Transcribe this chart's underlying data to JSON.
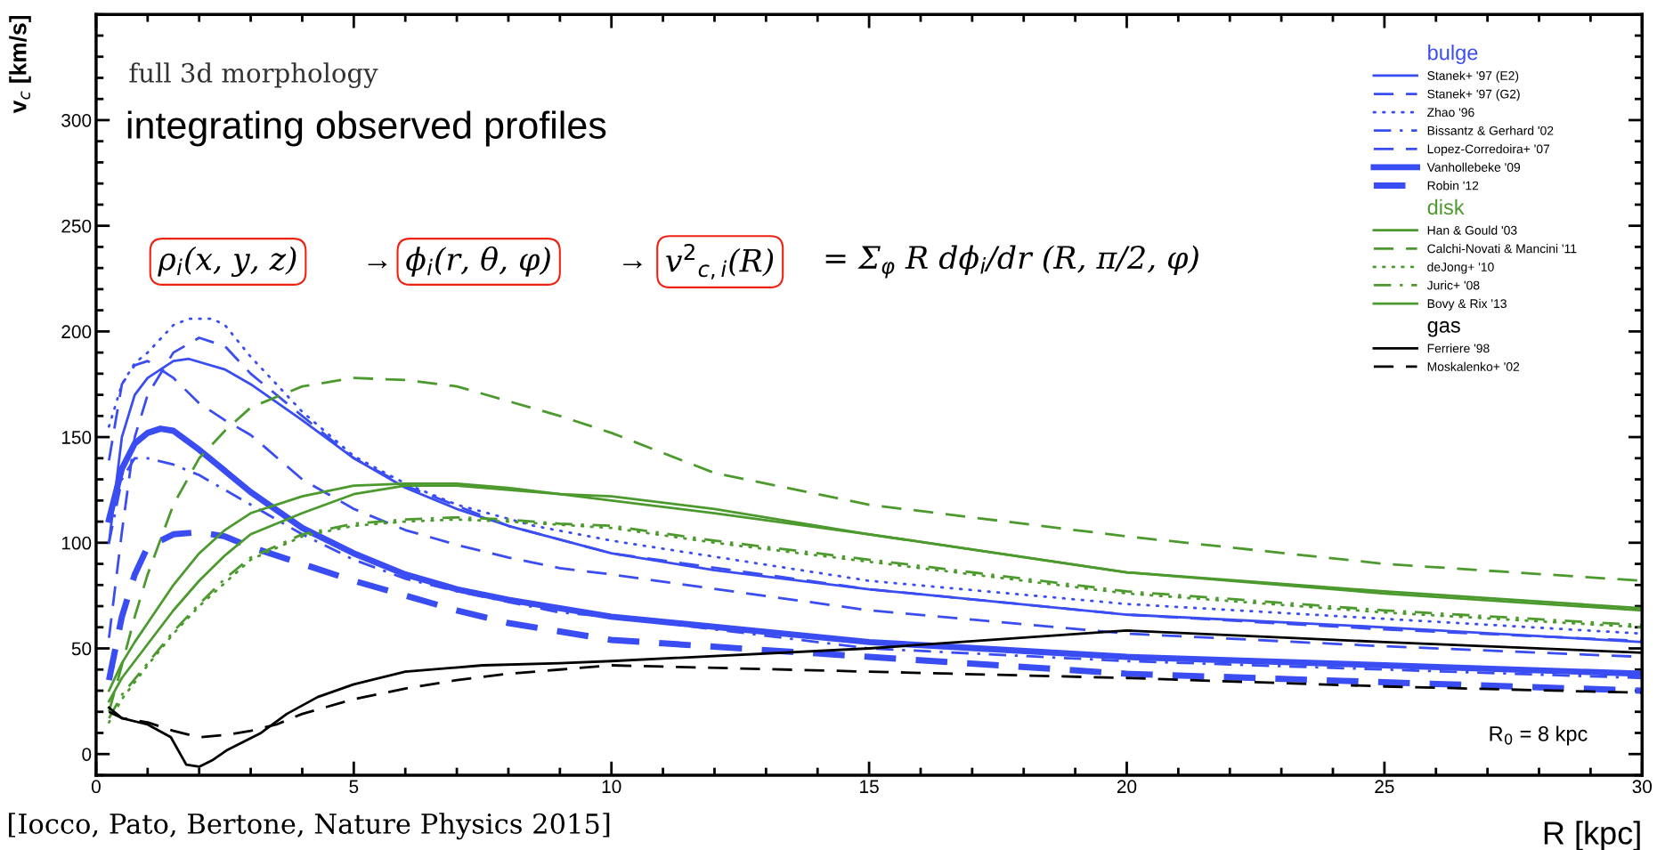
{
  "chart_data": {
    "type": "line",
    "xlabel": "R [kpc]",
    "ylabel": "v$_{c}$ [km/s]",
    "xlim": [
      0,
      30
    ],
    "xticks": [
      0,
      5,
      10,
      15,
      20,
      25,
      30
    ],
    "ylim": [
      -10,
      350
    ],
    "yticks": [
      0,
      50,
      100,
      150,
      200,
      250,
      300
    ],
    "grid": false,
    "legend": "top right",
    "annotations": [
      "full 3d morphology",
      "integrating observed profiles",
      "ρ$_{i}$(x, y, z)",
      "→",
      "ϕ$_{i}$(r, θ, φ)",
      "→",
      "v$^{2}$$_{c,i}$(R)",
      "= Σ$_{φ}$ R dϕ$_{i}$/dr (R, π/2, φ)",
      "R$_{0}$ = 8 kpc",
      "[Iocco, Pato, Bertone, Nature Physics 2015]",
      "bulge",
      "disk",
      "gas"
    ],
    "series": [
      {
        "name": "Stanek+ '97 (E2)",
        "color": "#3a4df2",
        "line_style": "solid",
        "x": [
          0.25,
          0.5,
          0.75,
          1,
          1.5,
          1.8,
          2.5,
          3,
          4,
          5,
          6,
          7,
          8,
          10,
          12,
          15,
          20,
          25,
          30
        ],
        "values": [
          100,
          150,
          170,
          178,
          186,
          187,
          182,
          175,
          158,
          140,
          126,
          116,
          108,
          95,
          87,
          78,
          66,
          60,
          53
        ]
      },
      {
        "name": "Stanek+ '97 (G2)",
        "color": "#3a4df2",
        "line_style": "dashed",
        "x": [
          0.25,
          0.5,
          0.75,
          1,
          1.5,
          2,
          2.5,
          3,
          4,
          5,
          6,
          8,
          10,
          15,
          20,
          25,
          30
        ],
        "values": [
          55,
          105,
          150,
          170,
          190,
          197,
          193,
          180,
          160,
          140,
          127,
          108,
          95,
          78,
          66,
          59,
          53.5
        ]
      },
      {
        "name": "Zhao '96",
        "color": "#3a4df2",
        "line_style": "dotted",
        "x": [
          0.25,
          0.5,
          0.75,
          1,
          1.5,
          1.8,
          2.25,
          2.5,
          3,
          4,
          5,
          6,
          7,
          8.5,
          10,
          15,
          20,
          25,
          30
        ],
        "values": [
          155,
          175,
          185,
          190,
          203,
          206,
          206,
          203,
          188,
          162,
          141,
          128,
          118,
          108,
          101,
          82,
          71,
          64,
          57
        ]
      },
      {
        "name": "Bissantz & Gerhard '02",
        "color": "#3a4df2",
        "line_style": "dashdot",
        "x": [
          0.25,
          0.5,
          0.75,
          1,
          1.5,
          2,
          3,
          4,
          5,
          6,
          7,
          8,
          9,
          10,
          15,
          20,
          25,
          30
        ],
        "values": [
          100,
          130,
          140,
          140,
          137,
          132,
          118,
          104,
          92,
          83,
          77,
          72,
          67,
          65,
          50,
          44,
          40,
          36
        ]
      },
      {
        "name": "Lopez-Corredoira+ '07",
        "color": "#3a4df2",
        "line_style": "dashed",
        "x": [
          0.25,
          0.5,
          0.75,
          1,
          1.5,
          2,
          2.5,
          3,
          4,
          5,
          6,
          7,
          8,
          9,
          10,
          15,
          20,
          25,
          30
        ],
        "values": [
          139,
          175,
          184,
          186,
          178,
          166,
          158,
          151,
          130,
          116,
          106,
          99,
          93,
          88,
          85,
          68,
          57,
          51,
          46
        ]
      },
      {
        "name": "Vanhollebeke '09",
        "color": "#3a4df2",
        "line_style": "solid",
        "x": [
          0.25,
          0.5,
          0.75,
          1,
          1.25,
          1.5,
          2,
          3,
          4,
          5,
          6,
          7,
          8,
          9,
          10,
          15,
          20,
          25,
          30
        ],
        "values": [
          111,
          135,
          147,
          152,
          154,
          153,
          144,
          124,
          107,
          95,
          85,
          78,
          73,
          69,
          65,
          53,
          46,
          42,
          38
        ]
      },
      {
        "name": "Robin '12",
        "color": "#3a4df2",
        "line_style": "dashed",
        "x": [
          0.25,
          0.5,
          0.75,
          1,
          1.5,
          2,
          2.5,
          3,
          4,
          5,
          6,
          7,
          8,
          9,
          10,
          15,
          20,
          25,
          30
        ],
        "values": [
          35,
          65,
          85,
          98,
          104,
          105,
          103,
          98,
          90,
          82,
          75,
          68,
          62,
          58,
          54,
          46,
          38,
          34,
          30
        ]
      },
      {
        "name": "Han & Gould '03",
        "color": "#4c9a2e",
        "line_style": "solid",
        "x": [
          0.25,
          0.5,
          0.75,
          1,
          1.5,
          2,
          2.5,
          3,
          4,
          5,
          6,
          7,
          8,
          9,
          10,
          12,
          15,
          20,
          25,
          30
        ],
        "values": [
          30,
          43,
          53,
          62,
          80,
          95,
          106,
          114,
          122,
          127,
          128,
          128,
          126,
          123,
          120,
          114,
          104,
          86,
          76,
          68
        ]
      },
      {
        "name": "Calchi-Novati & Mancini '11",
        "color": "#4c9a2e",
        "line_style": "dashed",
        "x": [
          0.25,
          0.5,
          0.75,
          1,
          1.5,
          2,
          2.5,
          3,
          4,
          5,
          6,
          7,
          8,
          9,
          10,
          12,
          15,
          20,
          25,
          30
        ],
        "values": [
          20,
          42,
          65,
          85,
          118,
          140,
          153,
          164,
          174,
          178,
          177,
          174,
          167,
          160,
          152,
          133,
          118,
          103,
          90,
          82
        ]
      },
      {
        "name": "deJong+ '10",
        "color": "#4c9a2e",
        "line_style": "dotted",
        "x": [
          0.25,
          0.5,
          1,
          1.5,
          2,
          3,
          4,
          5,
          6,
          7,
          8,
          10,
          12,
          15,
          20,
          25,
          30
        ],
        "values": [
          15,
          26,
          42,
          57,
          70,
          92,
          103,
          108,
          110,
          111,
          110,
          107,
          100,
          91,
          76,
          67,
          60
        ]
      },
      {
        "name": "Juric+ '08",
        "color": "#4c9a2e",
        "line_style": "dashdot",
        "x": [
          0.25,
          0.5,
          1,
          1.5,
          2,
          2.5,
          3,
          4,
          5,
          6,
          7,
          8,
          9,
          10,
          12,
          15,
          20,
          25,
          30
        ],
        "values": [
          17,
          28,
          43,
          58,
          71,
          83,
          93,
          104,
          109,
          111,
          112,
          111,
          109,
          108,
          101,
          92,
          77,
          68,
          61
        ]
      },
      {
        "name": "Bovy & Rix '13",
        "color": "#4c9a2e",
        "line_style": "solid",
        "x": [
          0.25,
          0.5,
          1,
          1.5,
          2,
          2.5,
          3,
          4,
          5,
          6,
          7,
          8,
          9,
          10,
          12,
          15,
          20,
          25,
          30
        ],
        "values": [
          25,
          36,
          52,
          68,
          82,
          94,
          104,
          114,
          123,
          127,
          127,
          125,
          123,
          122,
          116,
          104,
          86,
          77,
          69
        ]
      },
      {
        "name": "Ferriere '98",
        "color": "#000000",
        "line_style": "solid",
        "x": [
          0.25,
          0.5,
          1,
          1.45,
          1.75,
          2,
          2.25,
          2.55,
          3.2,
          3.7,
          4.3,
          5,
          6,
          7.5,
          9,
          10,
          15,
          20,
          25,
          30
        ],
        "values": [
          22,
          17,
          14,
          8,
          -5,
          -6,
          -3,
          2,
          10,
          19,
          27,
          33,
          39,
          42,
          43,
          44,
          50,
          58.5,
          53,
          48
        ]
      },
      {
        "name": "Moskalenko+ '02",
        "color": "#000000",
        "line_style": "dashed",
        "x": [
          0.25,
          0.5,
          1,
          1.5,
          2,
          2.5,
          3,
          3.5,
          4,
          5,
          6,
          7,
          8,
          9,
          10,
          15,
          20,
          25,
          30
        ],
        "values": [
          20,
          17,
          15,
          11,
          8,
          9,
          11,
          14,
          19,
          26,
          31,
          35,
          38,
          40,
          42,
          39,
          36,
          32,
          29
        ]
      }
    ]
  }
}
